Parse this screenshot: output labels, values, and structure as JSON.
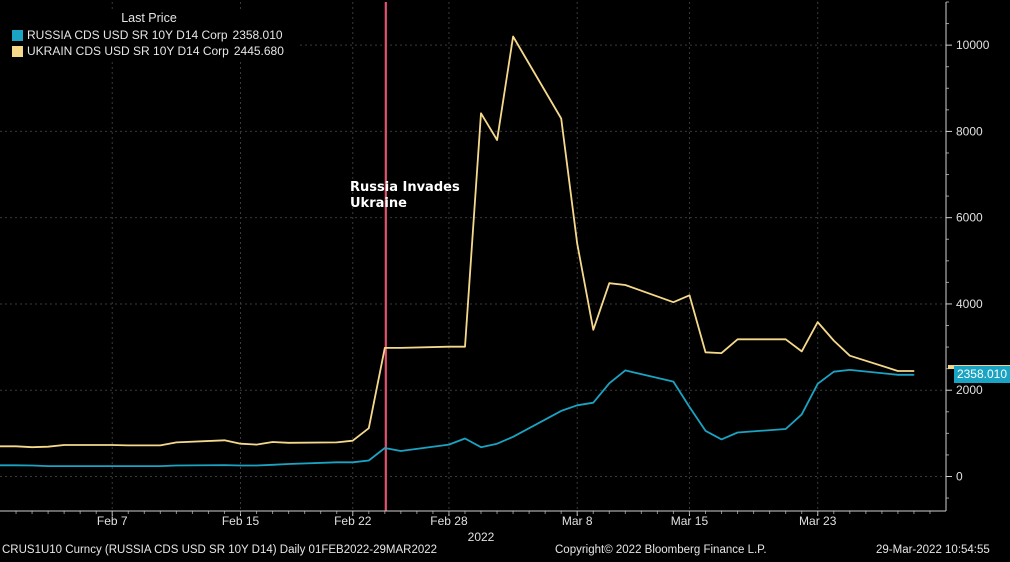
{
  "chart_data": {
    "type": "line",
    "legend_title": "Last Price",
    "legend_placement": "top-left",
    "grid": true,
    "ylim": [
      -800,
      11000
    ],
    "y_ticks": [
      0,
      2000,
      4000,
      6000,
      8000,
      10000
    ],
    "x_tick_labels": [
      "Feb 7",
      "Feb 15",
      "Feb 22",
      "Feb 28",
      "Mar 8",
      "Mar 15",
      "Mar 23"
    ],
    "x_tick_dates": [
      "2022-02-07",
      "2022-02-15",
      "2022-02-22",
      "2022-02-28",
      "2022-03-08",
      "2022-03-15",
      "2022-03-23"
    ],
    "year_label": "2022",
    "event": {
      "date": "2022-02-24",
      "label_line1": "Russia Invades",
      "label_line2": "Ukraine",
      "color": "#e0526e"
    },
    "x": [
      "2022-02-01",
      "2022-02-02",
      "2022-02-03",
      "2022-02-04",
      "2022-02-07",
      "2022-02-08",
      "2022-02-09",
      "2022-02-10",
      "2022-02-11",
      "2022-02-14",
      "2022-02-15",
      "2022-02-16",
      "2022-02-17",
      "2022-02-18",
      "2022-02-21",
      "2022-02-22",
      "2022-02-23",
      "2022-02-24",
      "2022-02-25",
      "2022-02-28",
      "2022-03-01",
      "2022-03-02",
      "2022-03-03",
      "2022-03-04",
      "2022-03-07",
      "2022-03-08",
      "2022-03-09",
      "2022-03-10",
      "2022-03-11",
      "2022-03-14",
      "2022-03-15",
      "2022-03-16",
      "2022-03-17",
      "2022-03-18",
      "2022-03-21",
      "2022-03-22",
      "2022-03-23",
      "2022-03-24",
      "2022-03-25",
      "2022-03-28",
      "2022-03-29"
    ],
    "series": [
      {
        "name": "RUSSIA CDS USD SR 10Y D14 Corp",
        "last_value": "2358.010",
        "color": "#1aa3c2",
        "values": [
          260,
          255,
          240,
          240,
          240,
          240,
          240,
          240,
          255,
          265,
          255,
          255,
          270,
          290,
          330,
          330,
          370,
          660,
          590,
          740,
          880,
          680,
          760,
          920,
          1520,
          1650,
          1710,
          2160,
          2460,
          2200,
          1610,
          1060,
          860,
          1020,
          1100,
          1440,
          2150,
          2430,
          2470,
          2358,
          2358
        ]
      },
      {
        "name": "UKRAIN CDS USD SR 10Y D14 Corp",
        "last_value": "2445.680",
        "color": "#f5d98b",
        "values": [
          700,
          680,
          690,
          730,
          730,
          720,
          720,
          720,
          790,
          840,
          760,
          740,
          800,
          780,
          790,
          830,
          1120,
          2980,
          2980,
          3010,
          3010,
          8420,
          7800,
          10200,
          8300,
          5400,
          3400,
          4480,
          4440,
          4040,
          4200,
          2880,
          2860,
          3180,
          3180,
          2900,
          3580,
          3150,
          2800,
          2445,
          2445
        ]
      }
    ],
    "badge_value": "2358.010"
  },
  "footer": {
    "left": "CRUS1U10 Curncy (RUSSIA CDS USD SR 10Y D14)  Daily 01FEB2022-29MAR2022",
    "center": "Copyright© 2022 Bloomberg Finance L.P.",
    "right": "29-Mar-2022 10:54:55"
  }
}
